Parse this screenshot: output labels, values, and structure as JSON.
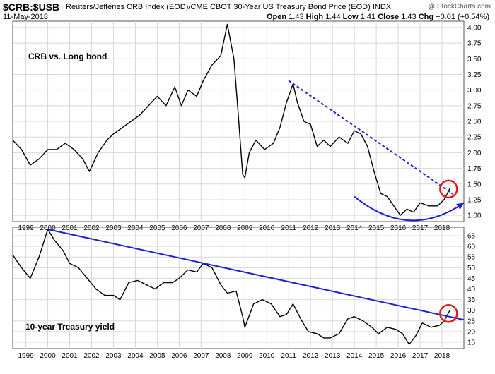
{
  "header": {
    "symbol": "$CRB:$USB",
    "description": "Reuters/Jefferies CRB Index (EOD)/CME CBOT 30-Year US Treasury Bond Price (EOD)",
    "exchange": "INDX",
    "watermark": "@ StockCharts.com",
    "date": "11-May-2018",
    "quote": {
      "open_label": "Open",
      "open": "1.43",
      "high_label": "High",
      "high": "1.44",
      "low_label": "Low",
      "low": "1.41",
      "close_label": "Close",
      "close": "1.43",
      "chg_label": "Chg",
      "chg": "+0.01 (+0.54%)"
    }
  },
  "colors": {
    "price_line": "#000000",
    "trend_line": "#1f1fd6",
    "highlight_circle": "#e0191c",
    "grid": "#d8d8d8"
  },
  "chart_data": [
    {
      "type": "line",
      "annotation": "CRB vs. Long bond",
      "x_ticks": [
        "1999",
        "2000",
        "2001",
        "2002",
        "2003",
        "2004",
        "2005",
        "2006",
        "2007",
        "2008",
        "2009",
        "2010",
        "2011",
        "2012",
        "2013",
        "2014",
        "2015",
        "2016",
        "2017",
        "2018"
      ],
      "y_ticks": [
        "1.00",
        "1.25",
        "1.50",
        "1.75",
        "2.00",
        "2.25",
        "2.50",
        "2.75",
        "3.00",
        "3.25",
        "3.50",
        "3.75",
        "4.00"
      ],
      "ylim": [
        0.9,
        4.1
      ],
      "xlim": [
        1998.4,
        2019.0
      ],
      "series": [
        {
          "x": [
            1998.4,
            1998.8,
            1999.2,
            1999.6,
            2000.0,
            2000.4,
            2000.8,
            2001.2,
            2001.6,
            2001.9,
            2002.3,
            2002.7,
            2003.0,
            2003.4,
            2003.8,
            2004.2,
            2004.6,
            2005.0,
            2005.4,
            2005.8,
            2006.1,
            2006.4,
            2006.8,
            2007.1,
            2007.5,
            2007.9,
            2008.2,
            2008.5,
            2008.7,
            2008.9,
            2009.0,
            2009.2,
            2009.5,
            2009.9,
            2010.3,
            2010.6,
            2010.9,
            2011.2,
            2011.4,
            2011.7,
            2012.0,
            2012.3,
            2012.6,
            2012.9,
            2013.3,
            2013.7,
            2014.0,
            2014.3,
            2014.6,
            2014.9,
            2015.2,
            2015.5,
            2015.9,
            2016.1,
            2016.4,
            2016.7,
            2017.0,
            2017.4,
            2017.8,
            2018.1,
            2018.36
          ],
          "y": [
            2.2,
            2.05,
            1.8,
            1.9,
            2.05,
            2.05,
            2.15,
            2.05,
            1.9,
            1.7,
            2.0,
            2.2,
            2.3,
            2.4,
            2.5,
            2.6,
            2.75,
            2.9,
            2.75,
            3.05,
            2.75,
            3.0,
            2.9,
            3.15,
            3.4,
            3.55,
            4.05,
            3.5,
            2.6,
            1.65,
            1.6,
            2.0,
            2.2,
            2.05,
            2.15,
            2.4,
            2.8,
            3.1,
            2.8,
            2.5,
            2.45,
            2.1,
            2.2,
            2.1,
            2.25,
            2.15,
            2.35,
            2.3,
            2.1,
            1.7,
            1.35,
            1.3,
            1.1,
            1.0,
            1.1,
            1.05,
            1.2,
            1.15,
            1.15,
            1.25,
            1.43
          ]
        }
      ],
      "trend_lines": [
        {
          "style": "dashed",
          "x": [
            2011.0,
            2018.5
          ],
          "y": [
            3.15,
            1.34
          ]
        },
        {
          "style": "curve",
          "x": [
            2014.0,
            2016.5,
            2019.0
          ],
          "y": [
            1.3,
            0.92,
            1.2
          ]
        }
      ],
      "highlight": {
        "x": 2018.3,
        "y": 1.42
      }
    },
    {
      "type": "line",
      "annotation": "10-year Treasury yield",
      "x_ticks": [
        "1999",
        "2000",
        "2001",
        "2002",
        "2003",
        "2004",
        "2005",
        "2006",
        "2007",
        "2008",
        "2009",
        "2010",
        "2011",
        "2012",
        "2013",
        "2014",
        "2015",
        "2016",
        "2017",
        "2018"
      ],
      "y_ticks": [
        "15",
        "20",
        "25",
        "30",
        "35",
        "40",
        "45",
        "50",
        "55",
        "60",
        "65"
      ],
      "ylim": [
        12,
        69
      ],
      "xlim": [
        1998.4,
        2019.0
      ],
      "series": [
        {
          "x": [
            1998.4,
            1998.8,
            1999.2,
            1999.6,
            2000.0,
            2000.3,
            2000.7,
            2001.0,
            2001.4,
            2001.8,
            2002.2,
            2002.6,
            2003.0,
            2003.3,
            2003.7,
            2004.1,
            2004.5,
            2004.9,
            2005.3,
            2005.7,
            2006.0,
            2006.4,
            2006.8,
            2007.1,
            2007.5,
            2007.9,
            2008.2,
            2008.6,
            2008.9,
            2009.0,
            2009.4,
            2009.8,
            2010.2,
            2010.6,
            2010.9,
            2011.2,
            2011.6,
            2011.9,
            2012.3,
            2012.6,
            2012.9,
            2013.3,
            2013.7,
            2014.0,
            2014.4,
            2014.8,
            2015.1,
            2015.5,
            2015.9,
            2016.2,
            2016.5,
            2016.8,
            2017.1,
            2017.5,
            2017.9,
            2018.1,
            2018.36
          ],
          "y": [
            56,
            50,
            45,
            55,
            68,
            63,
            58,
            52,
            50,
            45,
            40,
            37,
            37,
            35,
            43,
            44,
            42,
            40,
            43,
            43,
            45,
            49,
            48,
            52,
            50,
            42,
            38,
            39,
            27,
            22,
            33,
            35,
            33,
            27,
            28,
            33,
            25,
            20,
            19,
            17,
            17,
            19,
            26,
            27,
            25,
            22,
            19,
            22,
            21,
            19,
            14,
            18,
            24,
            22,
            23,
            25,
            30
          ]
        }
      ],
      "trend_lines": [
        {
          "style": "solid",
          "x": [
            2000.0,
            2019.0
          ],
          "y": [
            68,
            25.5
          ]
        }
      ],
      "highlight": {
        "x": 2018.3,
        "y": 28.5
      }
    }
  ]
}
